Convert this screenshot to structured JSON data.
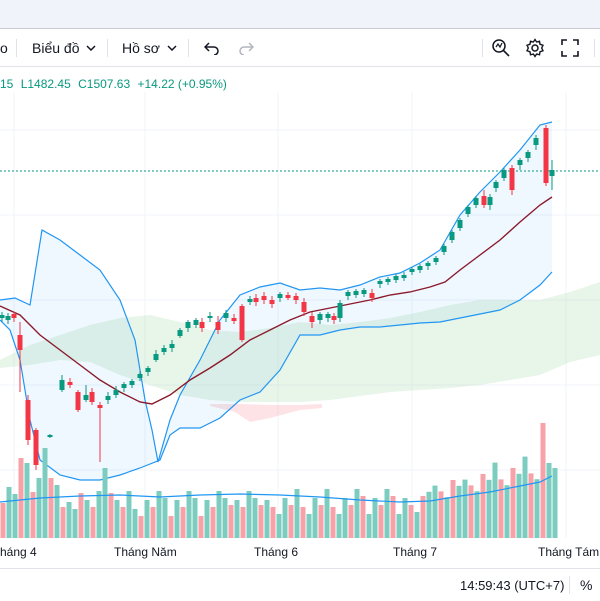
{
  "toolbar": {
    "cut_label": "o",
    "chart_label": "Biểu đồ",
    "profile_label": "Hồ sơ"
  },
  "ohlc": {
    "open_tail": "15",
    "low": "L1482.45",
    "close": "C1507.63",
    "change": "+14.22 (+0.95%)"
  },
  "xaxis": {
    "labels": [
      "háng 4",
      "Tháng Năm",
      "Tháng 6",
      "Tháng 7",
      "Tháng Tám"
    ]
  },
  "status": {
    "time": "14:59:43 (UTC+7)",
    "percent": "%"
  },
  "colors": {
    "up": "#089981",
    "down": "#f23645",
    "band": "#2196f3",
    "ma": "#8b1a2b",
    "cloud": "#a5d6a7",
    "vol_up": "#7ccdc0",
    "vol_down": "#f7a1a8"
  },
  "icons": [
    "chevron-down-icon",
    "undo-icon",
    "redo-icon",
    "zoom-icon",
    "gear-icon",
    "fullscreen-icon"
  ]
}
